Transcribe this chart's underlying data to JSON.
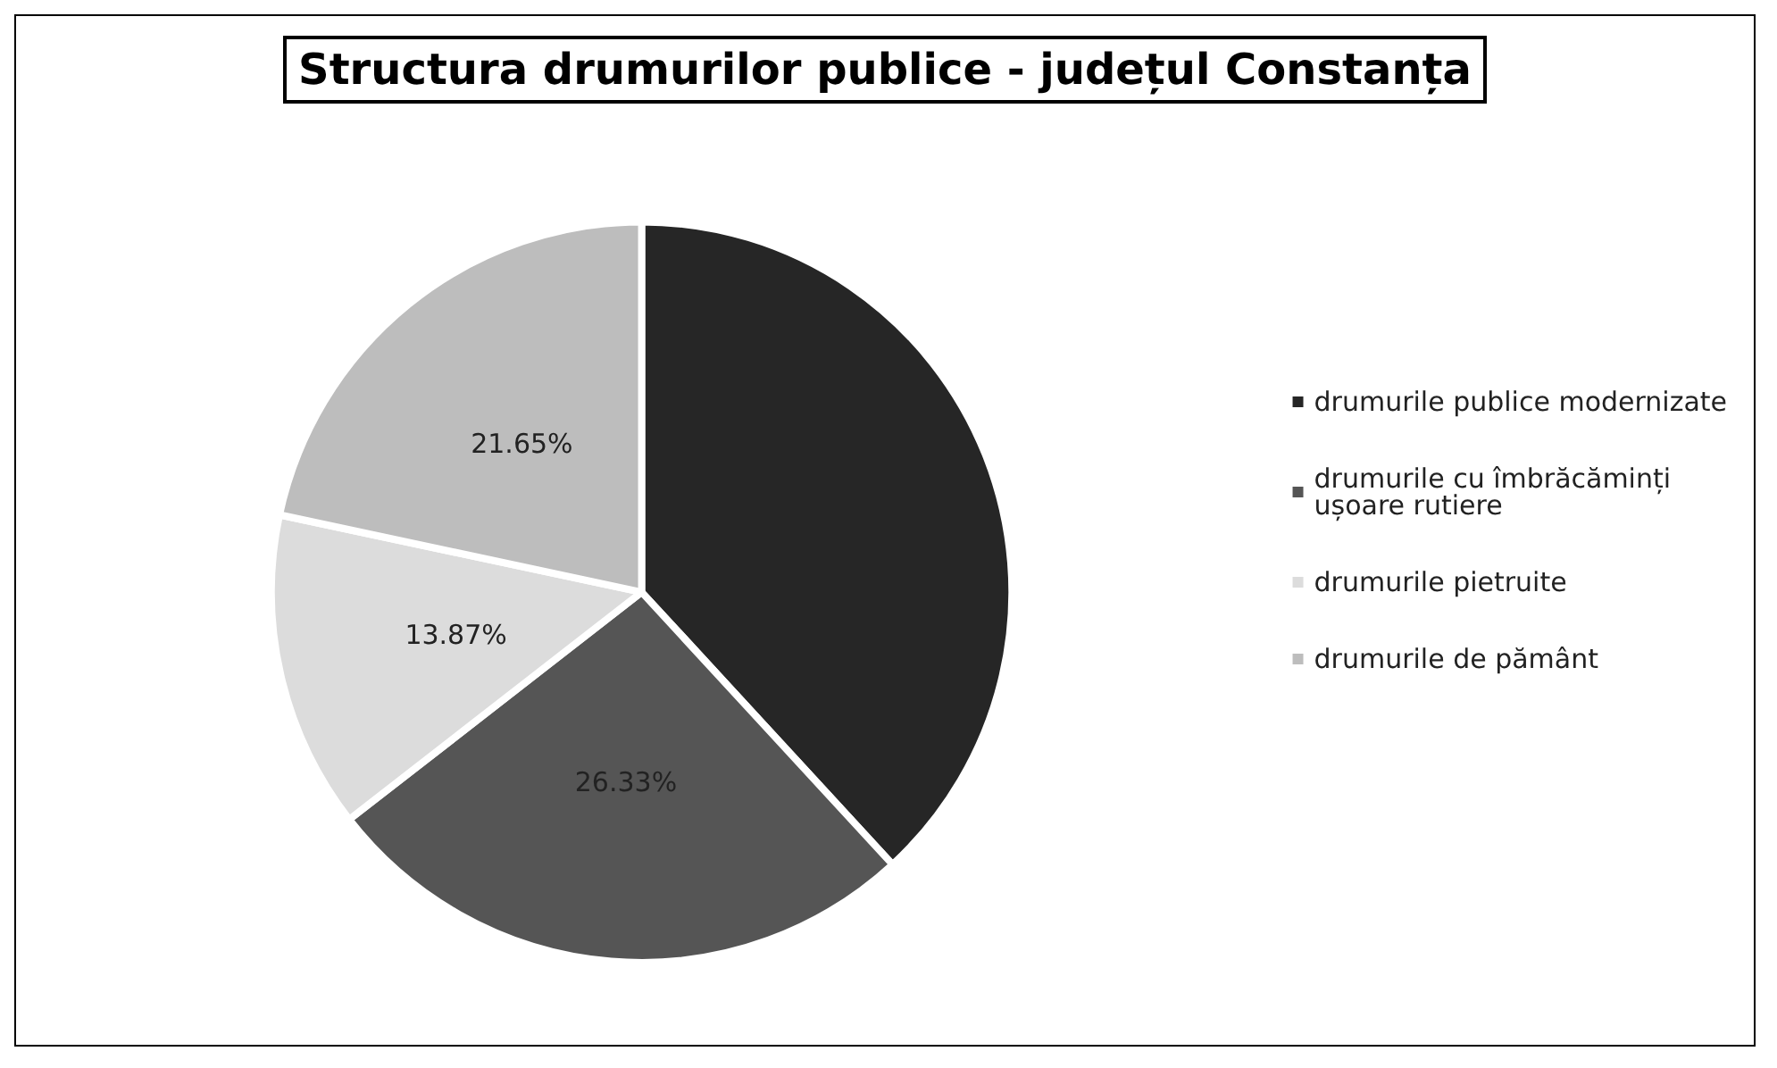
{
  "chart_data": {
    "type": "pie",
    "title": "Structura drumurilor publice - județul Constanța",
    "categories": [
      "drumurile publice modernizate",
      "drumurile cu îmbrăcăminți ușoare rutiere",
      "drumurile pietruite",
      "drumurile de pământ"
    ],
    "values": [
      38.15,
      26.33,
      13.87,
      21.65
    ],
    "value_labels": [
      null,
      "26.33%",
      "13.87%",
      "21.65%"
    ],
    "colors": [
      "#262626",
      "#555555",
      "#dcdcdc",
      "#bdbdbd"
    ],
    "legend": "right"
  }
}
